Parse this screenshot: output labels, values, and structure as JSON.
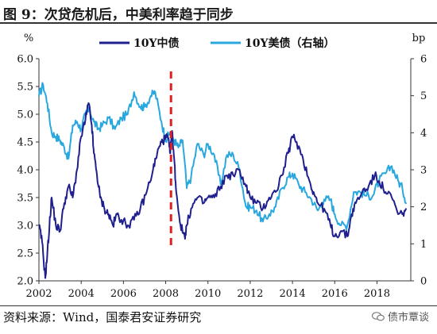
{
  "header": {
    "title": "图 9：次贷危机后，中美利率趋于同步"
  },
  "footer": {
    "source": "资料来源：Wind，国泰君安证券研究",
    "watermark": "债市覃谈"
  },
  "chart_data": {
    "type": "line",
    "left_axis": {
      "unit": "%",
      "range": [
        2.0,
        6.0
      ],
      "ticks": [
        "2.0",
        "2.5",
        "3.0",
        "3.5",
        "4.0",
        "4.5",
        "5.0",
        "5.5",
        "6.0"
      ]
    },
    "right_axis": {
      "unit": "bp",
      "range": [
        0,
        6
      ],
      "ticks": [
        "0",
        "1",
        "2",
        "3",
        "4",
        "5",
        "6"
      ]
    },
    "x_axis": {
      "range": [
        2002,
        2019.6
      ],
      "ticks": [
        "2002",
        "2004",
        "2006",
        "2008",
        "2010",
        "2012",
        "2014",
        "2016",
        "2018"
      ]
    },
    "grid": false,
    "legend_position": "top-center",
    "annotation": {
      "type": "vertical-dashed-line",
      "x": 2008.25,
      "color": "#e02020"
    },
    "series": [
      {
        "name": "10Y中债",
        "axis": "left",
        "color": "#1f1f8f",
        "x": [
          2002.0,
          2002.15,
          2002.3,
          2002.4,
          2002.5,
          2002.6,
          2002.8,
          2003.0,
          2003.2,
          2003.4,
          2003.6,
          2003.8,
          2004.0,
          2004.2,
          2004.35,
          2004.5,
          2004.6,
          2004.75,
          2004.9,
          2005.1,
          2005.3,
          2005.5,
          2005.7,
          2005.9,
          2006.2,
          2006.5,
          2006.8,
          2007.1,
          2007.4,
          2007.6,
          2007.8,
          2007.95,
          2008.1,
          2008.2,
          2008.3,
          2008.4,
          2008.5,
          2008.7,
          2008.9,
          2009.0,
          2009.2,
          2009.5,
          2009.8,
          2010.0,
          2010.3,
          2010.6,
          2010.9,
          2011.2,
          2011.5,
          2011.8,
          2012.0,
          2012.3,
          2012.6,
          2012.9,
          2013.2,
          2013.5,
          2013.8,
          2014.0,
          2014.2,
          2014.5,
          2014.8,
          2015.0,
          2015.2,
          2015.5,
          2015.8,
          2016.0,
          2016.3,
          2016.6,
          2016.8,
          2017.0,
          2017.3,
          2017.6,
          2017.9,
          2018.1,
          2018.4,
          2018.7,
          2019.0,
          2019.2,
          2019.4
        ],
        "y": [
          3.0,
          2.7,
          2.05,
          2.5,
          3.0,
          3.5,
          3.0,
          2.9,
          3.4,
          3.7,
          3.5,
          4.0,
          4.6,
          4.9,
          5.2,
          4.8,
          4.3,
          3.9,
          3.5,
          3.3,
          3.2,
          3.0,
          3.2,
          3.1,
          3.0,
          3.1,
          3.3,
          3.6,
          4.0,
          4.3,
          4.5,
          4.55,
          4.6,
          4.3,
          4.7,
          4.2,
          3.6,
          3.0,
          2.8,
          3.0,
          3.3,
          3.5,
          3.4,
          3.5,
          3.5,
          3.7,
          3.9,
          3.9,
          4.0,
          3.7,
          3.5,
          3.4,
          3.3,
          3.5,
          3.6,
          3.9,
          4.3,
          4.6,
          4.5,
          4.2,
          3.8,
          3.6,
          3.4,
          3.3,
          3.0,
          2.8,
          2.9,
          2.8,
          3.2,
          3.4,
          3.6,
          3.7,
          3.9,
          3.8,
          3.6,
          3.5,
          3.2,
          3.2,
          3.3
        ]
      },
      {
        "name": "10Y美债（右轴）",
        "axis": "right",
        "color": "#29a8e0",
        "x": [
          2002.0,
          2002.2,
          2002.4,
          2002.6,
          2002.8,
          2003.0,
          2003.2,
          2003.4,
          2003.6,
          2003.8,
          2004.0,
          2004.2,
          2004.4,
          2004.6,
          2004.8,
          2005.0,
          2005.3,
          2005.6,
          2005.9,
          2006.2,
          2006.5,
          2006.8,
          2007.0,
          2007.3,
          2007.5,
          2007.8,
          2008.0,
          2008.2,
          2008.4,
          2008.6,
          2008.8,
          2009.0,
          2009.2,
          2009.5,
          2009.8,
          2010.0,
          2010.3,
          2010.6,
          2010.9,
          2011.2,
          2011.5,
          2011.8,
          2012.0,
          2012.3,
          2012.6,
          2012.9,
          2013.2,
          2013.5,
          2013.8,
          2014.0,
          2014.3,
          2014.6,
          2014.9,
          2015.2,
          2015.5,
          2015.8,
          2016.0,
          2016.3,
          2016.6,
          2016.9,
          2017.2,
          2017.5,
          2017.8,
          2018.1,
          2018.4,
          2018.7,
          2019.0,
          2019.2,
          2019.4
        ],
        "y": [
          5.0,
          5.3,
          4.8,
          4.0,
          3.9,
          3.8,
          3.6,
          3.3,
          4.2,
          4.3,
          4.1,
          4.5,
          4.6,
          4.3,
          4.1,
          4.2,
          4.4,
          4.1,
          4.4,
          4.5,
          5.1,
          4.7,
          4.7,
          5.0,
          5.1,
          4.3,
          3.8,
          4.0,
          3.8,
          3.6,
          3.8,
          2.5,
          2.8,
          3.7,
          3.4,
          3.7,
          3.4,
          2.6,
          3.4,
          3.4,
          3.0,
          2.0,
          2.0,
          1.9,
          1.6,
          1.8,
          2.0,
          2.5,
          2.8,
          2.9,
          2.6,
          2.4,
          2.2,
          1.9,
          2.2,
          2.2,
          1.8,
          1.5,
          1.5,
          2.4,
          2.4,
          2.3,
          2.3,
          2.7,
          2.9,
          3.1,
          2.7,
          2.5,
          2.1
        ]
      }
    ]
  }
}
